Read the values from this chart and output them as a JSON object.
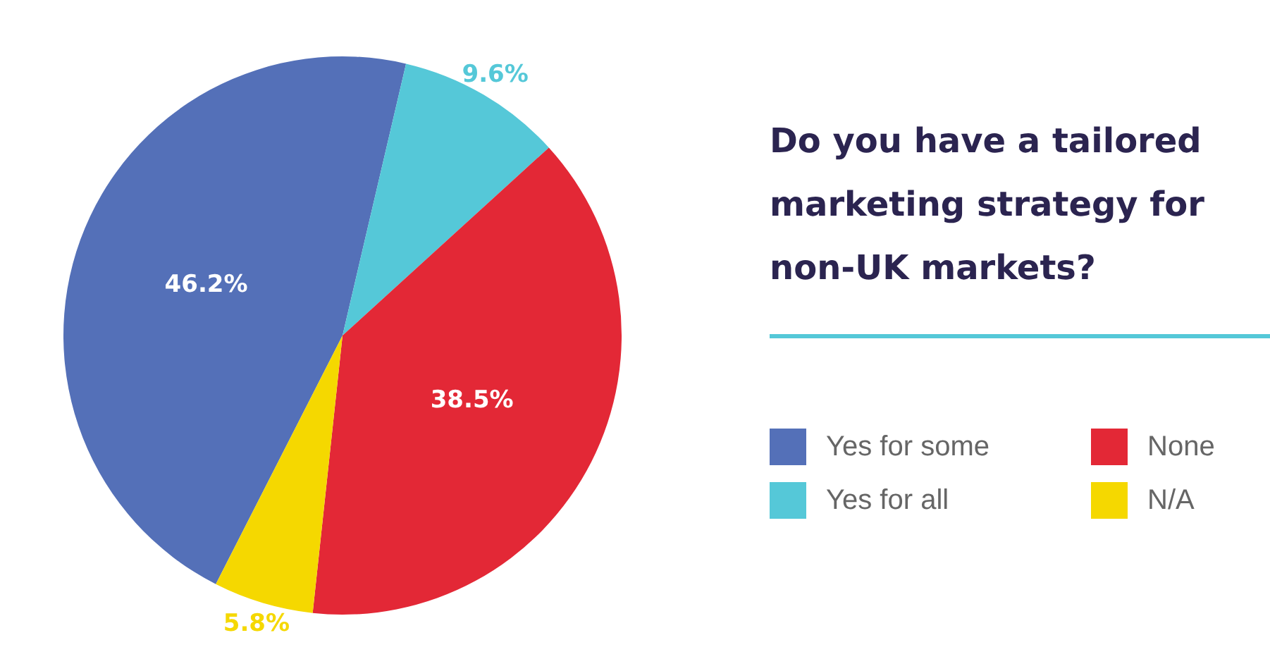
{
  "chart_data": {
    "type": "pie",
    "title": "Do you have a tailored marketing strategy for non-UK markets?",
    "categories": [
      "Yes for some",
      "Yes for all",
      "None",
      "N/A"
    ],
    "values": [
      46.2,
      9.6,
      38.5,
      5.8
    ],
    "colors": [
      "#5470b8",
      "#55c8d8",
      "#e32836",
      "#f5d800"
    ],
    "value_labels": [
      "46.2%",
      "9.6%",
      "38.5%",
      "5.8%"
    ],
    "legend": "right"
  }
}
